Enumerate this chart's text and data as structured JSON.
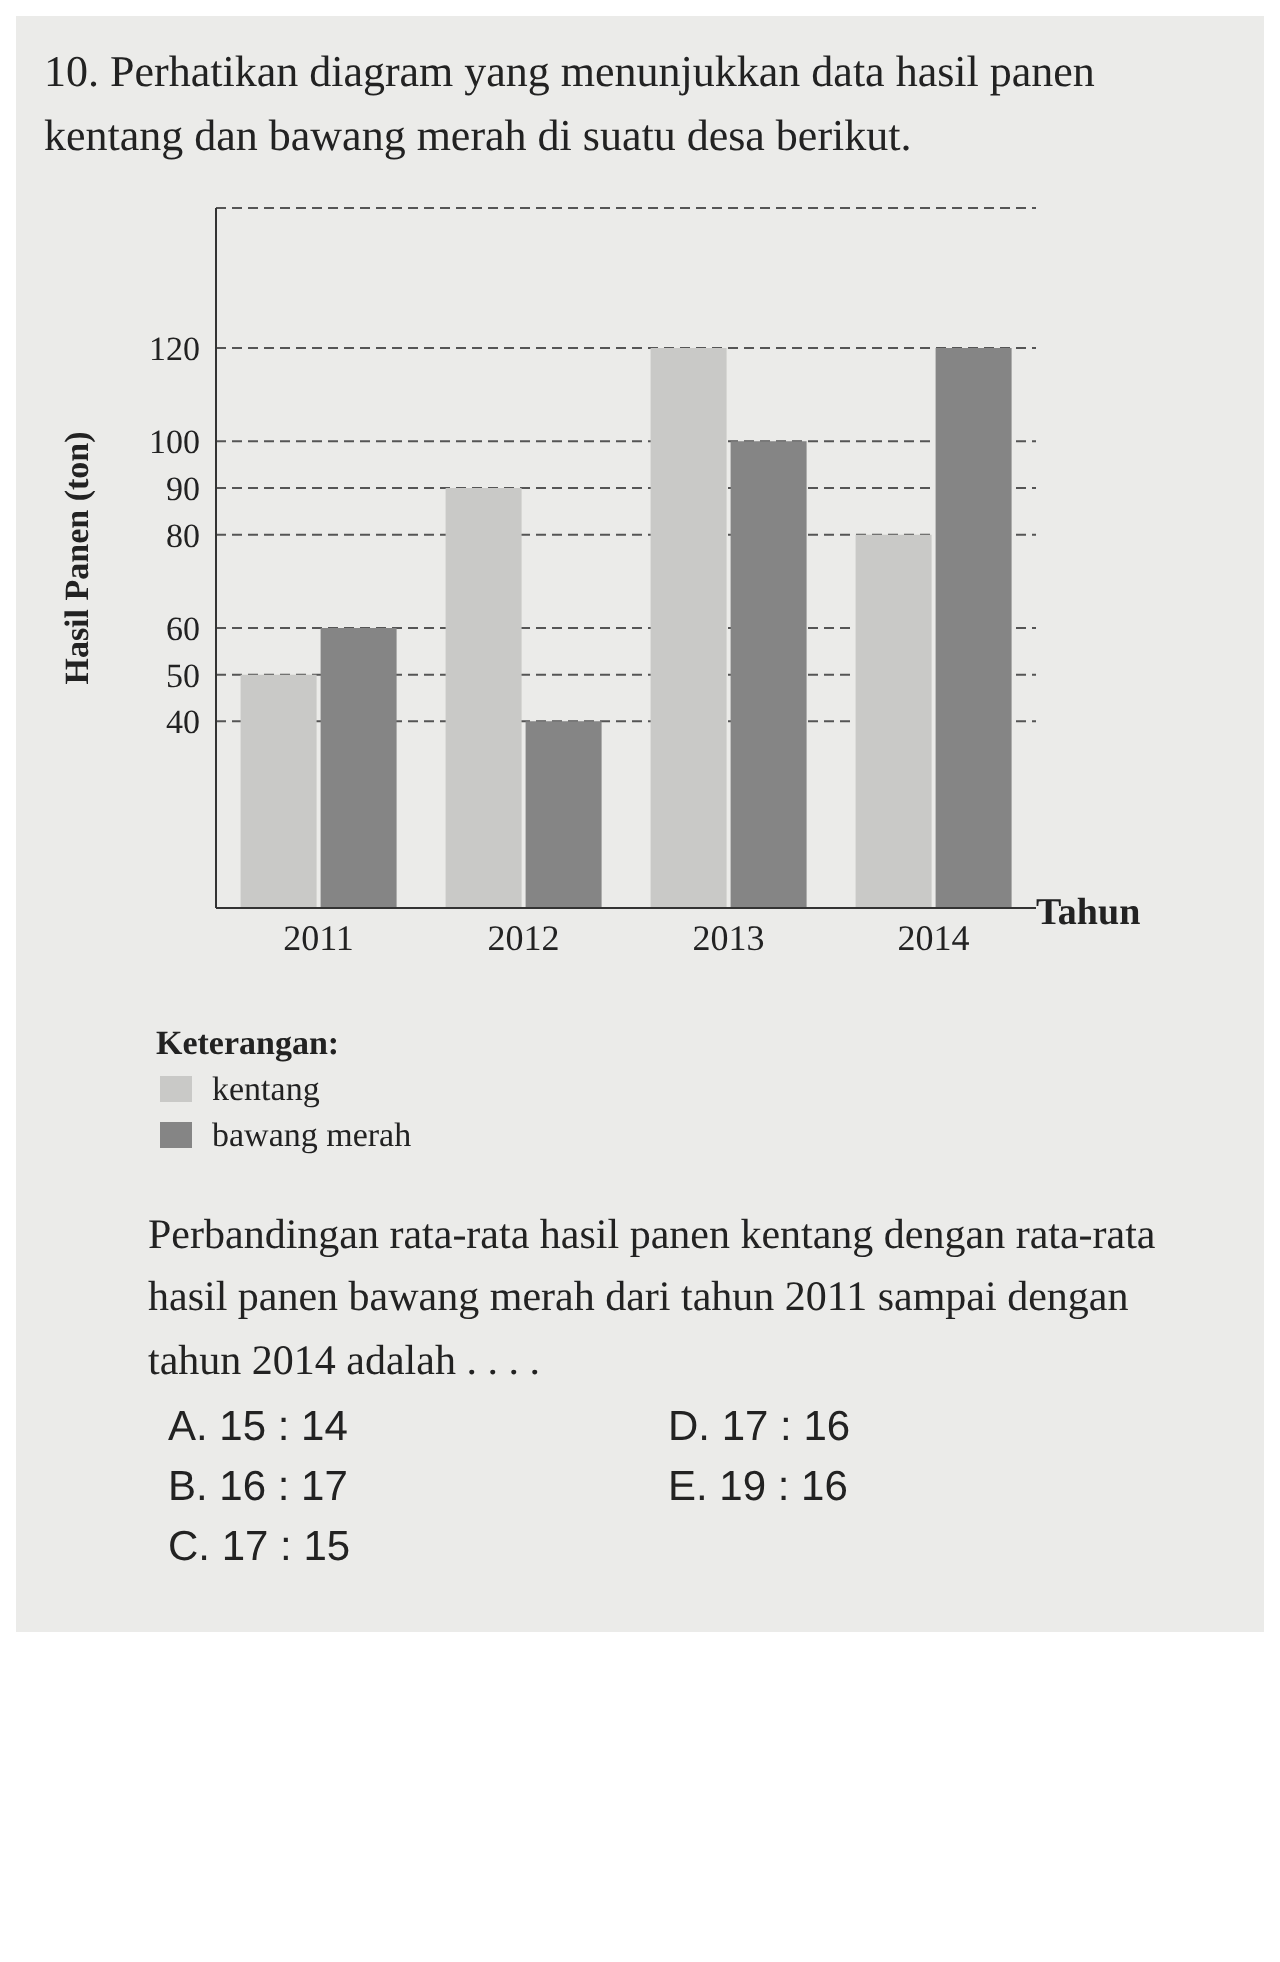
{
  "chart_data": {
    "type": "bar",
    "title": "10. Perhatikan diagram yang menunjukkan data hasil panen kentang dan bawang merah di suatu desa berikut.",
    "categories": [
      "2011",
      "2012",
      "2013",
      "2014"
    ],
    "series": [
      {
        "name": "kentang",
        "color": "#c9c9c7",
        "values": [
          50,
          90,
          120,
          80
        ]
      },
      {
        "name": "bawang merah",
        "color": "#858585",
        "values": [
          60,
          40,
          100,
          120
        ]
      }
    ],
    "xlabel": "Tahun",
    "ylabel": "Hasil Panen (ton)",
    "legend_title": "Keterangan:",
    "legend": "bottom left",
    "ylim": [
      0,
      150
    ],
    "yticks": [
      40,
      50,
      60,
      80,
      90,
      100,
      120
    ],
    "grid": "y",
    "line_style": "dashed",
    "annotations": [
      "Perbandingan rata-rata hasil panen kentang dengan rata-rata hasil panen bawang merah dari tahun 2011 sampai dengan tahun 2014 adalah . . . .",
      "A. 15 : 14",
      "B. 16 : 17",
      "C. 17 : 15",
      "D. 17 : 16",
      "E. 19 : 16"
    ]
  }
}
